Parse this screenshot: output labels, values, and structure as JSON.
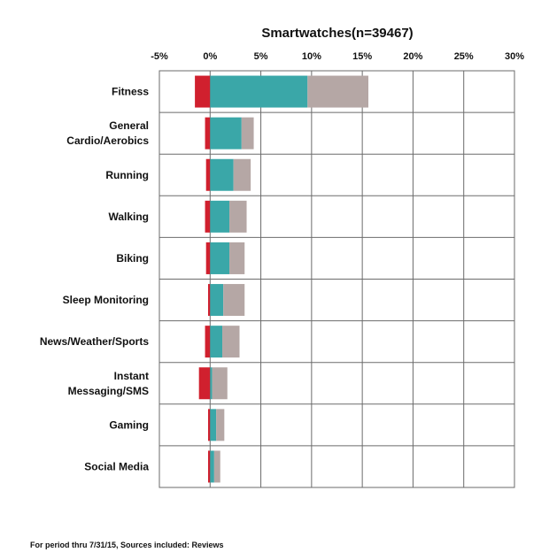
{
  "chart_data": {
    "type": "bar",
    "title": "Smartwatches(n=39467)",
    "xlabel": "",
    "ylabel": "",
    "xlim": [
      -5,
      30
    ],
    "ticks": [
      "-5%",
      "0%",
      "5%",
      "10%",
      "15%",
      "20%",
      "25%",
      "30%"
    ],
    "tick_values": [
      -5,
      0,
      5,
      10,
      15,
      20,
      25,
      30
    ],
    "categories": [
      [
        "Fitness"
      ],
      [
        "General",
        "Cardio/Aerobics"
      ],
      [
        "Running"
      ],
      [
        "Walking"
      ],
      [
        "Biking"
      ],
      [
        "Sleep Monitoring"
      ],
      [
        "News/Weather/Sports"
      ],
      [
        "Instant",
        "Messaging/SMS"
      ],
      [
        "Gaming"
      ],
      [
        "Social Media"
      ]
    ],
    "series": [
      {
        "color": "#d0202e",
        "values": [
          -1.5,
          -0.5,
          -0.4,
          -0.5,
          -0.4,
          -0.2,
          -0.5,
          -1.1,
          -0.2,
          -0.2
        ]
      },
      {
        "color": "#3aa7a8",
        "values": [
          9.6,
          3.1,
          2.3,
          1.9,
          1.9,
          1.3,
          1.2,
          0.2,
          0.6,
          0.4
        ]
      },
      {
        "color": "#b5a7a5",
        "values": [
          6.0,
          1.2,
          1.7,
          1.7,
          1.5,
          2.1,
          1.7,
          1.5,
          0.8,
          0.6
        ]
      }
    ],
    "grid": true,
    "footnote": "For period thru 7/31/15, Sources included: Reviews"
  }
}
